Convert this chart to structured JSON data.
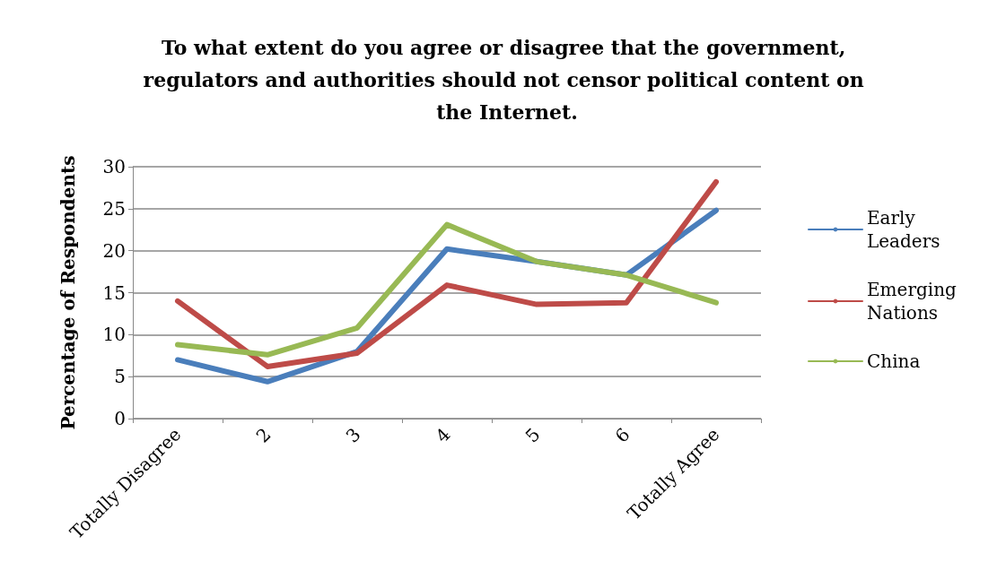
{
  "chart_data": {
    "type": "line",
    "title": "To what extent do you agree or disagree that the government, regulators and authorities should not censor political content on the Internet.",
    "ylabel": "Percentage of Respondents",
    "categories": [
      "Totally Disagree",
      "2",
      "3",
      "4",
      "5",
      "6",
      "Totally Agree"
    ],
    "series": [
      {
        "name": "Early Leaders",
        "color": "#4a7ebb",
        "values": [
          7.0,
          4.4,
          8.0,
          20.2,
          18.7,
          17.1,
          24.8
        ]
      },
      {
        "name": "Emerging Nations",
        "color": "#be4b48",
        "values": [
          14.0,
          6.2,
          7.8,
          15.9,
          13.6,
          13.8,
          28.2
        ]
      },
      {
        "name": "China",
        "color": "#98b954",
        "values": [
          8.8,
          7.6,
          10.8,
          23.1,
          18.7,
          17.1,
          13.8
        ]
      }
    ],
    "ylim": [
      0,
      30
    ],
    "yticks": [
      0,
      5,
      10,
      15,
      20,
      25,
      30
    ],
    "grid": "y",
    "legend": "right",
    "marker": "none",
    "line_style": "solid"
  }
}
